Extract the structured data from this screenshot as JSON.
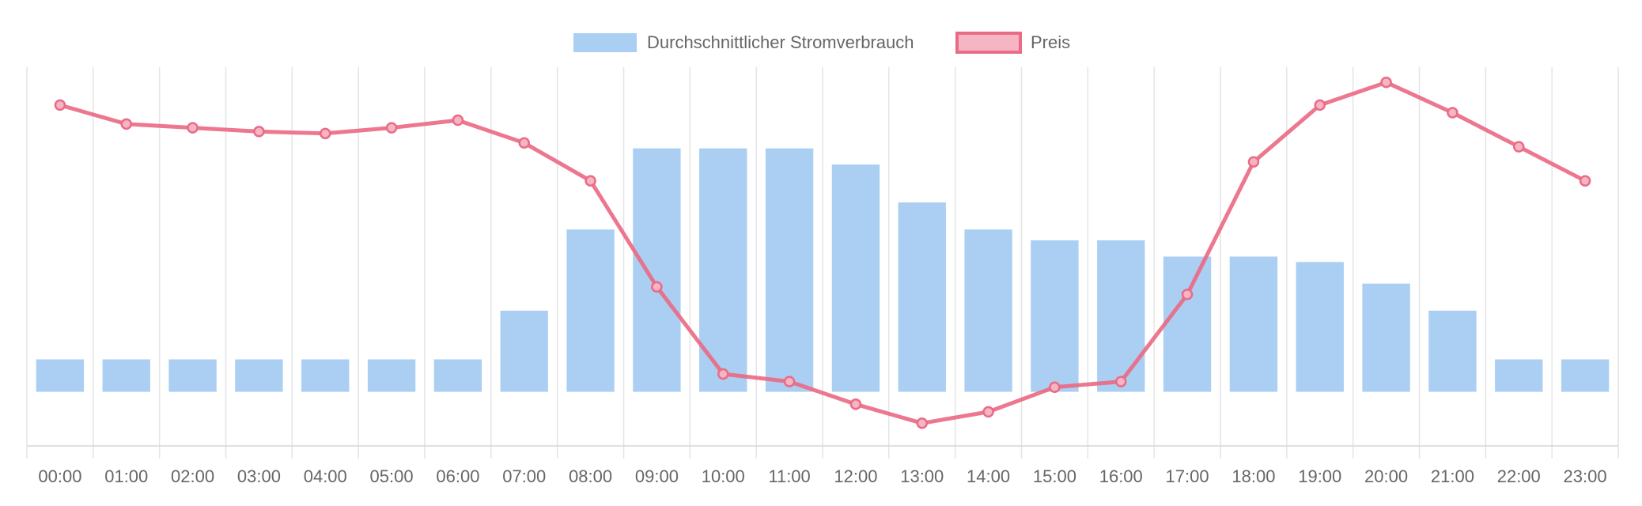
{
  "chart_data": {
    "type": "bar",
    "categories": [
      "00:00",
      "01:00",
      "02:00",
      "03:00",
      "04:00",
      "05:00",
      "06:00",
      "07:00",
      "08:00",
      "09:00",
      "10:00",
      "11:00",
      "12:00",
      "13:00",
      "14:00",
      "15:00",
      "16:00",
      "17:00",
      "18:00",
      "19:00",
      "20:00",
      "21:00",
      "22:00",
      "23:00"
    ],
    "title": "",
    "xlabel": "",
    "ylabel": "",
    "grid": true,
    "legend_position": "top-center",
    "series": [
      {
        "name": "Durchschnittlicher Stromverbrauch",
        "type": "bar",
        "color": "#aacff3",
        "values": [
          0.06,
          0.06,
          0.06,
          0.06,
          0.06,
          0.06,
          0.06,
          0.15,
          0.3,
          0.45,
          0.45,
          0.45,
          0.42,
          0.35,
          0.3,
          0.28,
          0.28,
          0.25,
          0.25,
          0.24,
          0.2,
          0.15,
          0.06,
          0.06
        ],
        "ylim": [
          -0.1,
          0.6
        ]
      },
      {
        "name": "Preis",
        "type": "line",
        "color": "#ea6b86",
        "fill_color": "#f6b5c3",
        "values": [
          0.9,
          0.85,
          0.84,
          0.83,
          0.825,
          0.84,
          0.86,
          0.8,
          0.7,
          0.42,
          0.19,
          0.17,
          0.11,
          0.06,
          0.09,
          0.155,
          0.17,
          0.4,
          0.75,
          0.9,
          0.96,
          0.88,
          0.79,
          0.7
        ],
        "ylim": [
          0,
          1
        ]
      }
    ]
  }
}
